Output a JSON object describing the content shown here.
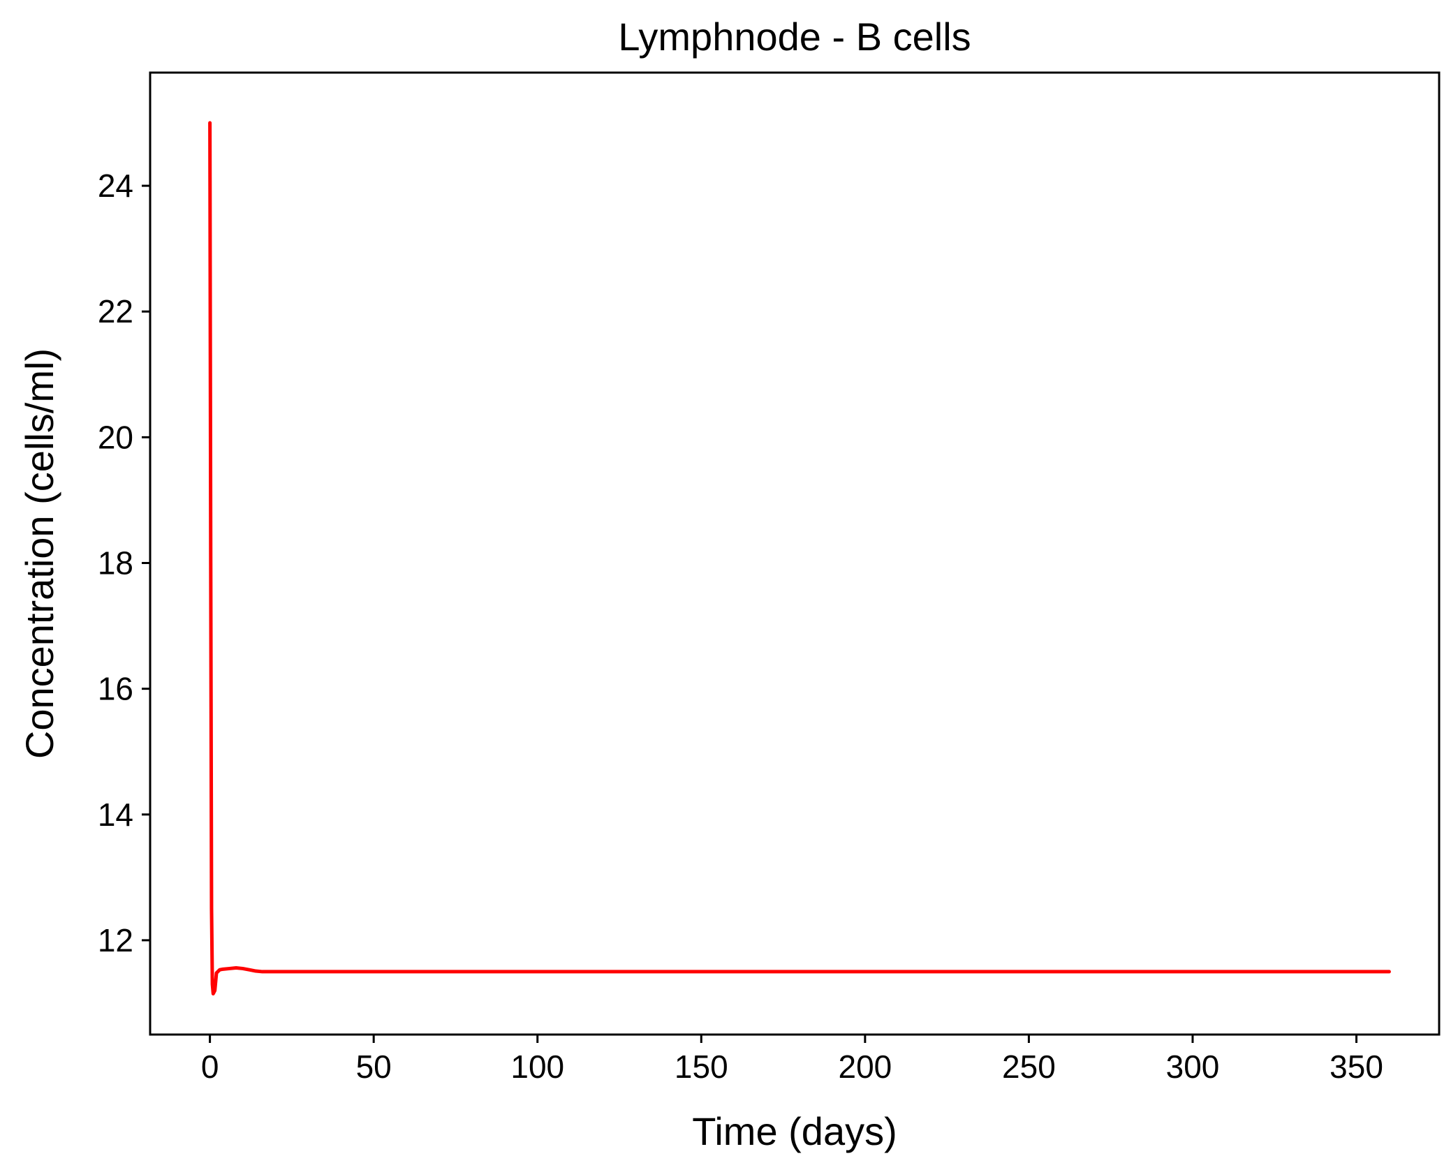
{
  "chart_data": {
    "type": "line",
    "title": "Lymphnode - B cells",
    "xlabel": "Time (days)",
    "ylabel": "Concentration (cells/ml)",
    "xlim": [
      -18.25,
      375.25
    ],
    "ylim": [
      10.5,
      25.8
    ],
    "xticks": [
      0,
      50,
      100,
      150,
      200,
      250,
      300,
      350
    ],
    "yticks": [
      12,
      14,
      16,
      18,
      20,
      22,
      24
    ],
    "grid": false,
    "legend": "none",
    "series": [
      {
        "color": "#ff0000",
        "x": [
          0,
          0.25,
          0.5,
          0.75,
          1,
          1.5,
          2,
          3,
          4,
          6,
          8,
          10,
          12,
          14,
          16,
          18,
          20,
          25,
          30,
          50,
          100,
          150,
          200,
          250,
          300,
          360
        ],
        "y": [
          25.0,
          18.0,
          12.5,
          11.3,
          11.15,
          11.2,
          11.48,
          11.53,
          11.54,
          11.55,
          11.56,
          11.55,
          11.53,
          11.51,
          11.5,
          11.5,
          11.5,
          11.5,
          11.5,
          11.5,
          11.5,
          11.5,
          11.5,
          11.5,
          11.5,
          11.5
        ]
      }
    ]
  }
}
